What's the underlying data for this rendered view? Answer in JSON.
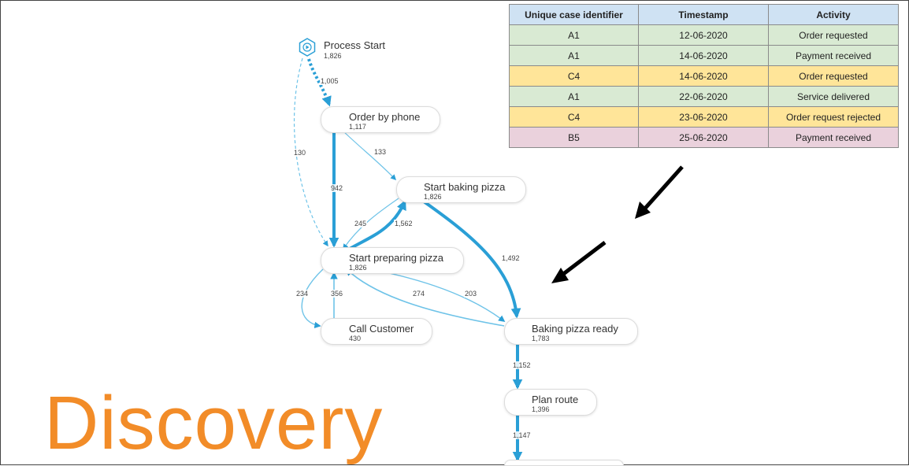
{
  "title": {
    "text": "Discovery",
    "color": "#f28c28"
  },
  "colors": {
    "edge": "#2a9fd6",
    "edge_light": "#6ec3e8",
    "node_dark": "#0e86c0",
    "node_light": "#5cbde6",
    "arrow": "#000000"
  },
  "process_map": {
    "nodes": [
      {
        "id": "start",
        "label": "Process Start",
        "count": "1,826",
        "icon": "play-hexagon-icon"
      },
      {
        "id": "phone",
        "label": "Order by phone",
        "count": "1,117",
        "icon": "hexagon-icon"
      },
      {
        "id": "baking",
        "label": "Start baking pizza",
        "count": "1,826",
        "icon": "hexagon-icon"
      },
      {
        "id": "preparing",
        "label": "Start preparing pizza",
        "count": "1,826",
        "icon": "hexagon-icon"
      },
      {
        "id": "call",
        "label": "Call Customer",
        "count": "430",
        "icon": "hexagon-icon"
      },
      {
        "id": "ready",
        "label": "Baking pizza ready",
        "count": "1,783",
        "icon": "hexagon-icon"
      },
      {
        "id": "route",
        "label": "Plan route",
        "count": "1,396",
        "icon": "hexagon-icon"
      }
    ],
    "edges": [
      {
        "from": "start",
        "to": "phone",
        "label": "1,005"
      },
      {
        "from": "start",
        "to": "preparing",
        "label": "130"
      },
      {
        "from": "phone",
        "to": "baking",
        "label": "133"
      },
      {
        "from": "phone",
        "to": "preparing",
        "label": "942"
      },
      {
        "from": "baking",
        "to": "preparing",
        "label": "245"
      },
      {
        "from": "preparing",
        "to": "baking",
        "label": "1,562"
      },
      {
        "from": "baking",
        "to": "ready",
        "label": "1,492"
      },
      {
        "from": "preparing",
        "to": "call",
        "label": "234"
      },
      {
        "from": "call",
        "to": "preparing",
        "label": "356"
      },
      {
        "from": "ready",
        "to": "preparing",
        "label": "274"
      },
      {
        "from": "preparing",
        "to": "ready",
        "label": "203"
      },
      {
        "from": "ready",
        "to": "route",
        "label": "1,152"
      },
      {
        "from": "route",
        "to": "next",
        "label": "1,147"
      }
    ]
  },
  "event_log": {
    "headers": [
      "Unique case identifier",
      "Timestamp",
      "Activity"
    ],
    "rows": [
      {
        "case": "A1",
        "timestamp": "12-06-2020",
        "activity": "Order requested",
        "color": "#d9ead3"
      },
      {
        "case": "A1",
        "timestamp": "14-06-2020",
        "activity": "Payment received",
        "color": "#d9ead3"
      },
      {
        "case": "C4",
        "timestamp": "14-06-2020",
        "activity": "Order requested",
        "color": "#ffe599"
      },
      {
        "case": "A1",
        "timestamp": "22-06-2020",
        "activity": "Service delivered",
        "color": "#d9ead3"
      },
      {
        "case": "C4",
        "timestamp": "23-06-2020",
        "activity": "Order request rejected",
        "color": "#ffe599"
      },
      {
        "case": "B5",
        "timestamp": "25-06-2020",
        "activity": "Payment received",
        "color": "#ead1dc"
      }
    ],
    "header_color": "#cfe2f3"
  }
}
